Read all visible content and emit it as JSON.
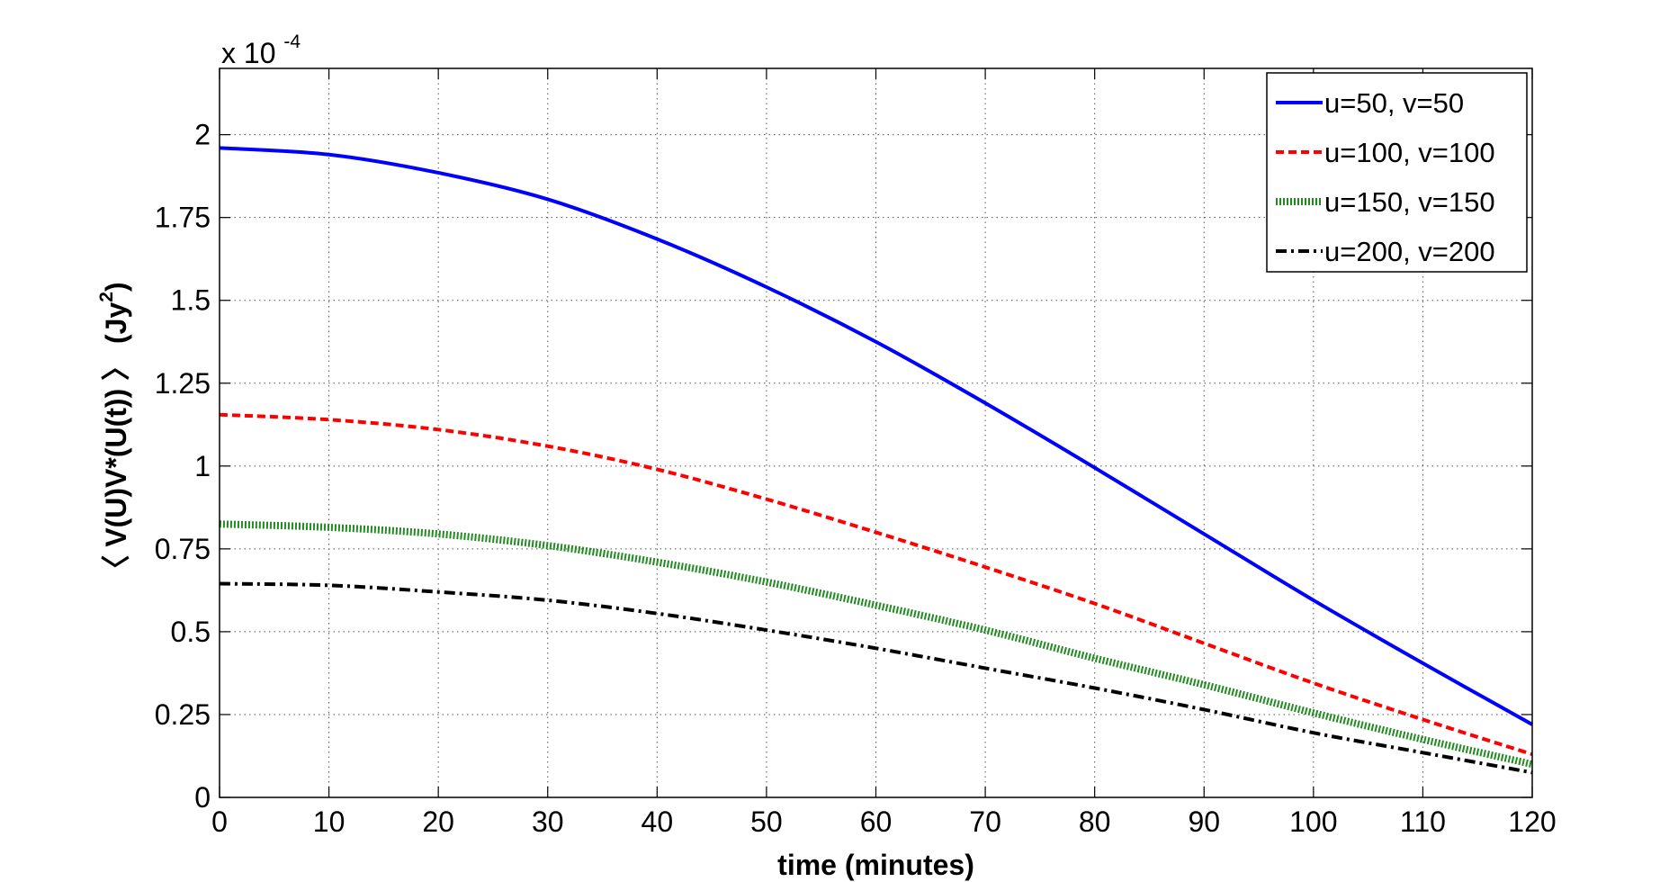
{
  "chart_data": {
    "type": "line",
    "title": "",
    "xlabel": "time (minutes)",
    "ylabel": "〈 V(U)V*(U(t)) 〉 (Jy²)",
    "ylabel_parts": {
      "main": "〈 V(U)V*(U(t)) 〉 (Jy",
      "exp": "2",
      "close": ")"
    },
    "y_multiplier": {
      "base": "x 10",
      "exponent": "-4"
    },
    "xlim": [
      0,
      120
    ],
    "ylim": [
      0,
      2.2
    ],
    "xticks": [
      0,
      10,
      20,
      30,
      40,
      50,
      60,
      70,
      80,
      90,
      100,
      110,
      120
    ],
    "xtick_labels": [
      "0",
      "10",
      "20",
      "30",
      "40",
      "50",
      "60",
      "70",
      "80",
      "90",
      "100",
      "110",
      "120"
    ],
    "yticks": [
      0,
      0.25,
      0.5,
      0.75,
      1,
      1.25,
      1.5,
      1.75,
      2
    ],
    "ytick_labels": [
      "0",
      "0.25",
      "0.5",
      "0.75",
      "1",
      "1.25",
      "1.5",
      "1.75",
      "2"
    ],
    "grid": true,
    "legend_position": "top-right",
    "x": [
      0,
      10,
      20,
      30,
      40,
      50,
      60,
      70,
      80,
      90,
      100,
      110,
      120
    ],
    "series": [
      {
        "name": "u=50, v=50",
        "color": "#0000ff",
        "style": "solid",
        "values": [
          1.96,
          1.94,
          1.885,
          1.805,
          1.685,
          1.54,
          1.375,
          1.19,
          0.995,
          0.795,
          0.595,
          0.405,
          0.22
        ]
      },
      {
        "name": "u=100, v=100",
        "color": "#ff0000",
        "style": "dashed",
        "values": [
          1.155,
          1.14,
          1.11,
          1.06,
          0.99,
          0.9,
          0.8,
          0.695,
          0.585,
          0.465,
          0.345,
          0.235,
          0.13
        ]
      },
      {
        "name": "u=150, v=150",
        "color": "#228b22",
        "style": "dotted",
        "values": [
          0.825,
          0.815,
          0.795,
          0.76,
          0.71,
          0.65,
          0.58,
          0.505,
          0.42,
          0.34,
          0.255,
          0.175,
          0.1
        ]
      },
      {
        "name": "u=200, v=200",
        "color": "#000000",
        "style": "dashdot",
        "values": [
          0.645,
          0.64,
          0.62,
          0.595,
          0.555,
          0.505,
          0.45,
          0.39,
          0.33,
          0.265,
          0.195,
          0.135,
          0.075
        ]
      }
    ]
  }
}
